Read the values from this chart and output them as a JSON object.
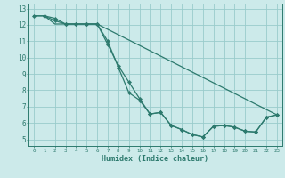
{
  "title": "",
  "xlabel": "Humidex (Indice chaleur)",
  "background_color": "#cceaea",
  "grid_color": "#99cccc",
  "line_color": "#2d7a6e",
  "xlim": [
    -0.5,
    23.5
  ],
  "ylim": [
    4.6,
    13.3
  ],
  "xticks": [
    0,
    1,
    2,
    3,
    4,
    5,
    6,
    7,
    8,
    9,
    10,
    11,
    12,
    13,
    14,
    15,
    16,
    17,
    18,
    19,
    20,
    21,
    22,
    23
  ],
  "yticks": [
    5,
    6,
    7,
    8,
    9,
    10,
    11,
    12,
    13
  ],
  "line1_x": [
    0,
    1,
    2,
    3,
    4,
    5,
    6,
    7,
    8,
    9,
    10,
    11,
    12,
    13,
    14,
    15,
    16,
    17,
    18,
    19,
    20,
    21,
    22,
    23
  ],
  "line1_y": [
    12.55,
    12.55,
    12.25,
    12.05,
    12.05,
    12.05,
    12.05,
    10.8,
    9.5,
    8.5,
    7.5,
    6.55,
    6.65,
    5.85,
    5.6,
    5.3,
    5.15,
    5.8,
    5.85,
    5.75,
    5.5,
    5.45,
    6.35,
    6.5
  ],
  "line2_x": [
    1,
    2,
    3,
    4,
    5,
    6,
    7,
    8,
    9,
    10,
    11,
    12,
    13,
    14,
    15,
    16,
    17,
    18,
    19,
    20,
    21,
    22,
    23
  ],
  "line2_y": [
    12.55,
    12.4,
    12.05,
    12.05,
    12.05,
    12.05,
    11.0,
    9.4,
    7.85,
    7.4,
    6.55,
    6.65,
    5.85,
    5.6,
    5.3,
    5.15,
    5.8,
    5.85,
    5.75,
    5.5,
    5.45,
    6.35,
    6.5
  ],
  "line3_x": [
    0,
    1,
    2,
    3,
    4,
    5,
    6,
    23
  ],
  "line3_y": [
    12.55,
    12.55,
    12.05,
    12.05,
    12.05,
    12.05,
    12.05,
    6.5
  ],
  "xlabel_fontsize": 6,
  "xtick_fontsize": 4.2,
  "ytick_fontsize": 5.5
}
